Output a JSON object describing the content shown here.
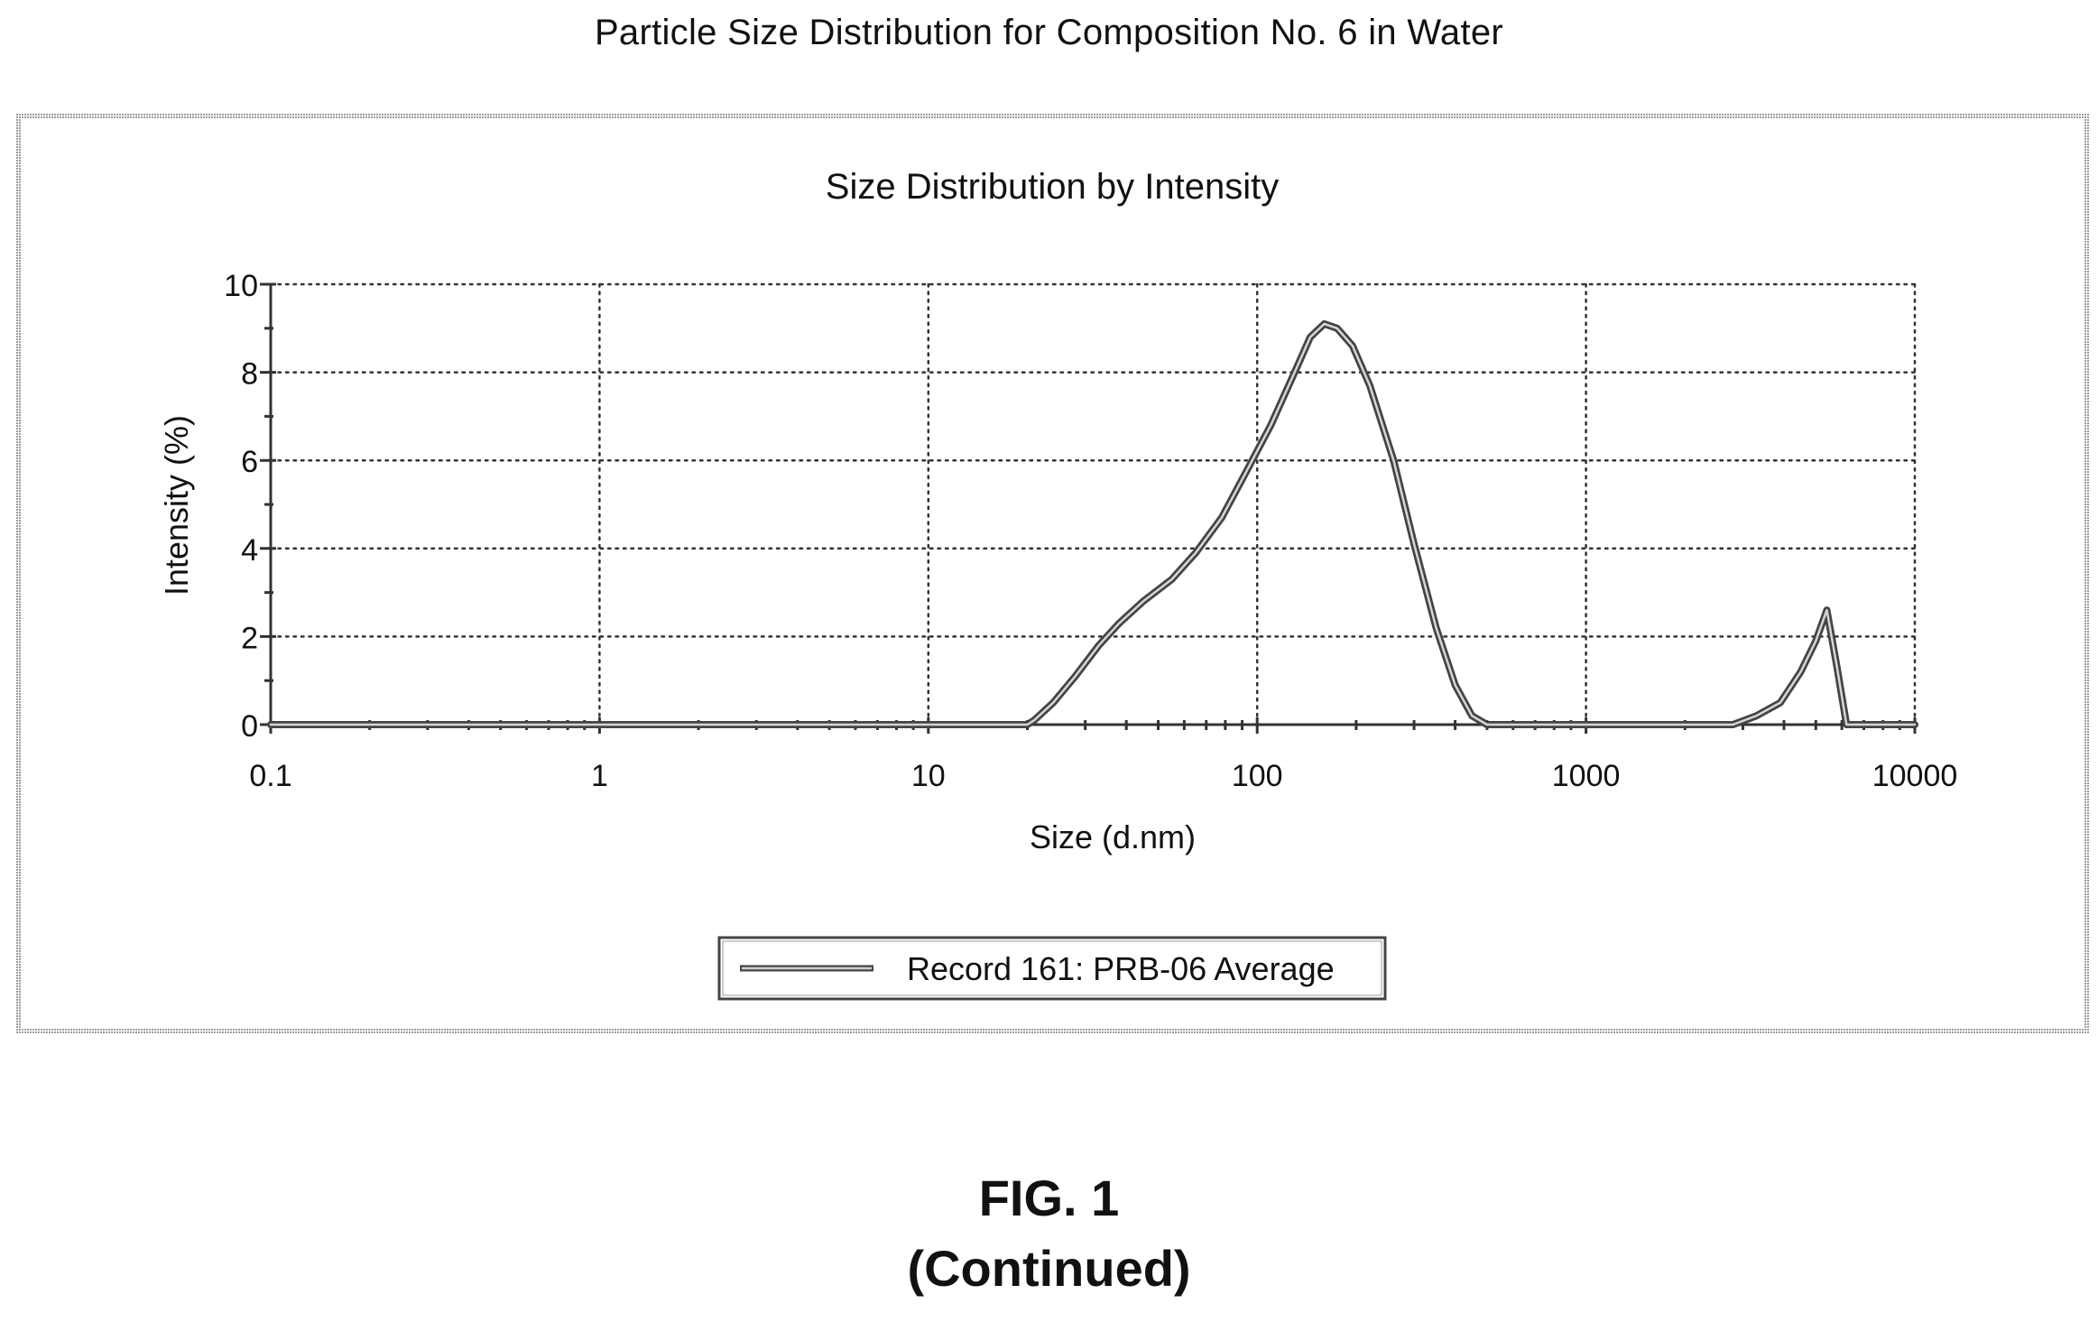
{
  "page_title": "Particle Size Distribution for Composition No. 6 in Water",
  "figure": {
    "label": "FIG. 1",
    "continued": "(Continued)"
  },
  "chart_data": {
    "type": "line",
    "title": "Size Distribution by Intensity",
    "xlabel": "Size (d.nm)",
    "ylabel": "Intensity (%)",
    "xscale": "log",
    "xlim": [
      0.1,
      10000
    ],
    "ylim": [
      0,
      10
    ],
    "x_ticks": [
      "0.1",
      "1",
      "10",
      "100",
      "1000",
      "10000"
    ],
    "y_ticks": [
      "0",
      "2",
      "4",
      "6",
      "8",
      "10"
    ],
    "grid": true,
    "legend_position": "bottom-center",
    "series": [
      {
        "name": "Record 161: PRB-06 Average",
        "color": "#444444",
        "points": [
          [
            0.1,
            0
          ],
          [
            0.5,
            0
          ],
          [
            1,
            0
          ],
          [
            5,
            0
          ],
          [
            10,
            0
          ],
          [
            20,
            0
          ],
          [
            21,
            0.1
          ],
          [
            24,
            0.5
          ],
          [
            28,
            1.1
          ],
          [
            33,
            1.8
          ],
          [
            38,
            2.3
          ],
          [
            45,
            2.8
          ],
          [
            55,
            3.3
          ],
          [
            65,
            3.9
          ],
          [
            78,
            4.7
          ],
          [
            92,
            5.7
          ],
          [
            110,
            6.8
          ],
          [
            130,
            8.0
          ],
          [
            145,
            8.8
          ],
          [
            160,
            9.1
          ],
          [
            175,
            9.0
          ],
          [
            195,
            8.6
          ],
          [
            220,
            7.7
          ],
          [
            260,
            6.0
          ],
          [
            300,
            4.1
          ],
          [
            350,
            2.2
          ],
          [
            400,
            0.9
          ],
          [
            450,
            0.2
          ],
          [
            500,
            0
          ],
          [
            1000,
            0
          ],
          [
            2000,
            0
          ],
          [
            2800,
            0
          ],
          [
            3300,
            0.2
          ],
          [
            3900,
            0.5
          ],
          [
            4500,
            1.2
          ],
          [
            5000,
            1.9
          ],
          [
            5400,
            2.6
          ],
          [
            5800,
            1.3
          ],
          [
            6200,
            0
          ],
          [
            7000,
            0
          ],
          [
            8000,
            0
          ],
          [
            10000,
            0
          ]
        ]
      }
    ]
  }
}
